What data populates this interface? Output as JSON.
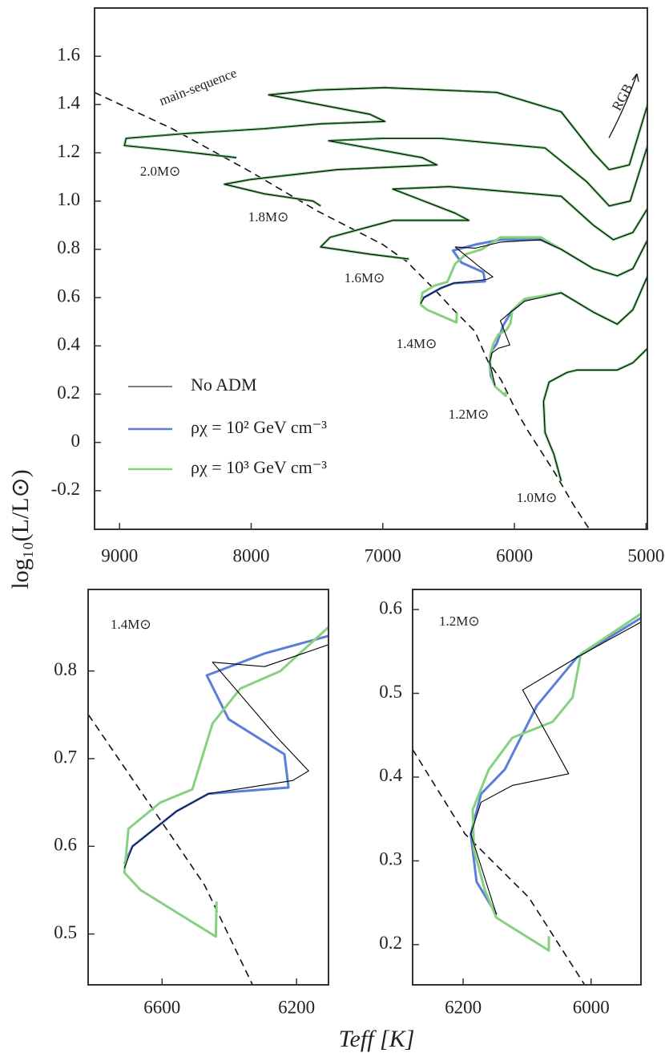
{
  "chart_data": [
    {
      "type": "line",
      "ylabel": "log₁₀(L/L⊙)",
      "xlim": [
        9190,
        4990
      ],
      "ylim": [
        -0.36,
        1.8
      ],
      "xticks": [
        9000,
        8000,
        7000,
        6000,
        5000
      ],
      "yticks": [
        -0.2,
        0,
        0.2,
        0.4,
        0.6,
        0.8,
        {
          "value": 1,
          "label": "1.0"
        },
        1.2,
        1.4,
        1.6
      ],
      "series": [
        {
          "name": "No ADM",
          "color": "#000000",
          "x": [
            8112,
            8600,
            8963,
            8950,
            8500,
            7900,
            7472,
            6985,
            7100,
            7867,
            7500,
            6985,
            6132,
            5645,
            5400,
            5280,
            5127,
            4988,
            null,
            7472,
            7530,
            7900,
            8203,
            8000,
            7350,
            6589,
            6700,
            7411,
            7000,
            6559,
            5767,
            5450,
            5280,
            5120,
            4988,
            null,
            6802,
            7100,
            7472,
            7400,
            6924,
            6346,
            6450,
            6924,
            6498,
            5645,
            5400,
            5249,
            5100,
            4988,
            null,
            6712,
            6688,
            6557,
            6462,
            6212,
            6164,
            6260,
            6450,
            6295,
            6105,
            5800,
            5645,
            5400,
            5219,
            5100,
            4988,
            null,
            6148,
            6188,
            6172,
            6123,
            6035,
            6107,
            6022,
            5922,
            5645,
            5400,
            5219,
            5100,
            4988,
            null,
            5645,
            5700,
            5767,
            5779,
            5737,
            5600,
            5524,
            5219,
            5100,
            4988
          ],
          "values": [
            1.18,
            1.21,
            1.23,
            1.26,
            1.28,
            1.3,
            1.32,
            1.33,
            1.36,
            1.44,
            1.46,
            1.47,
            1.45,
            1.37,
            1.2,
            1.13,
            1.15,
            1.4,
            null,
            0.98,
            1.0,
            1.03,
            1.07,
            1.09,
            1.13,
            1.15,
            1.18,
            1.25,
            1.26,
            1.26,
            1.22,
            1.08,
            0.98,
            1.0,
            1.23,
            null,
            0.76,
            0.78,
            0.81,
            0.85,
            0.92,
            0.92,
            0.95,
            1.05,
            1.06,
            1.02,
            0.9,
            0.84,
            0.87,
            0.97,
            null,
            0.575,
            0.6,
            0.64,
            0.66,
            0.675,
            0.686,
            0.725,
            0.81,
            0.805,
            0.83,
            0.84,
            0.8,
            0.72,
            0.69,
            0.72,
            0.84,
            null,
            0.236,
            0.332,
            0.37,
            0.39,
            0.404,
            0.504,
            0.543,
            0.585,
            0.62,
            0.54,
            0.49,
            0.55,
            0.69,
            null,
            -0.16,
            -0.05,
            0.04,
            0.17,
            0.25,
            0.29,
            0.3,
            0.3,
            0.33,
            0.39
          ]
        },
        {
          "name": "ρχ = 10² GeV cm⁻³",
          "color": "#5b7fd6",
          "x": [
            8112,
            8600,
            8963,
            8950,
            8500,
            7900,
            7472,
            6985,
            7100,
            7867,
            7500,
            6985,
            6132,
            5645,
            5400,
            5280,
            5127,
            4988,
            null,
            7472,
            7530,
            7900,
            8203,
            8000,
            7350,
            6589,
            6700,
            7411,
            7000,
            6559,
            5767,
            5450,
            5280,
            5120,
            4988,
            null,
            6802,
            7100,
            7472,
            7400,
            6924,
            6346,
            6450,
            6924,
            6498,
            5645,
            5400,
            5249,
            5100,
            4988,
            null,
            6712,
            6688,
            6557,
            6462,
            6224,
            6236,
            6402,
            6467,
            6295,
            6105,
            5800,
            5645,
            5400,
            5219,
            5100,
            4988,
            null,
            6148,
            6179,
            6188,
            6172,
            6135,
            6085,
            6022,
            5922,
            5645,
            5400,
            5219,
            5100,
            4988,
            null,
            5645,
            5700,
            5767,
            5779,
            5737,
            5600,
            5524,
            5219,
            5100,
            4988
          ],
          "values": [
            1.18,
            1.21,
            1.23,
            1.26,
            1.28,
            1.3,
            1.32,
            1.33,
            1.36,
            1.44,
            1.46,
            1.47,
            1.45,
            1.37,
            1.2,
            1.13,
            1.15,
            1.4,
            null,
            0.98,
            1.0,
            1.03,
            1.07,
            1.09,
            1.13,
            1.15,
            1.18,
            1.25,
            1.26,
            1.26,
            1.22,
            1.08,
            0.98,
            1.0,
            1.23,
            null,
            0.76,
            0.78,
            0.81,
            0.85,
            0.92,
            0.92,
            0.95,
            1.05,
            1.06,
            1.02,
            0.9,
            0.84,
            0.87,
            0.97,
            null,
            0.58,
            0.6,
            0.64,
            0.66,
            0.667,
            0.705,
            0.745,
            0.795,
            0.82,
            0.84,
            0.84,
            0.8,
            0.72,
            0.69,
            0.72,
            0.84,
            null,
            0.236,
            0.275,
            0.332,
            0.38,
            0.409,
            0.485,
            0.543,
            0.59,
            0.62,
            0.54,
            0.49,
            0.55,
            0.69,
            null,
            -0.16,
            -0.05,
            0.04,
            0.17,
            0.25,
            0.29,
            0.3,
            0.3,
            0.33,
            0.39
          ]
        },
        {
          "name": "ρχ = 10³ GeV cm⁻³",
          "color": "#86d17f",
          "x": [
            8112,
            8600,
            8963,
            8950,
            8500,
            7900,
            7472,
            6985,
            7100,
            7867,
            7500,
            6985,
            6132,
            5645,
            5400,
            5280,
            5127,
            4988,
            null,
            7472,
            7530,
            7900,
            8203,
            8000,
            7350,
            6589,
            6700,
            7411,
            7000,
            6559,
            5767,
            5450,
            5280,
            5120,
            4988,
            null,
            6802,
            7100,
            7472,
            7400,
            6924,
            6346,
            6450,
            6924,
            6498,
            5645,
            5400,
            5249,
            5100,
            4988,
            null,
            6438,
            6440,
            6664,
            6712,
            6700,
            6605,
            6510,
            6450,
            6367,
            6248,
            6105,
            5800,
            5645,
            5400,
            5219,
            5100,
            4988,
            null,
            6066,
            6066,
            6148,
            6166,
            6183,
            6185,
            6160,
            6123,
            6060,
            6029,
            6016,
            5922,
            5645,
            5400,
            5219,
            5100,
            4988,
            null,
            5645,
            5700,
            5767,
            5779,
            5737,
            5600,
            5524,
            5219,
            5100,
            4988
          ],
          "values": [
            1.18,
            1.21,
            1.23,
            1.26,
            1.28,
            1.3,
            1.32,
            1.33,
            1.36,
            1.44,
            1.46,
            1.47,
            1.45,
            1.37,
            1.2,
            1.13,
            1.15,
            1.4,
            null,
            0.98,
            1.0,
            1.03,
            1.07,
            1.09,
            1.13,
            1.15,
            1.18,
            1.25,
            1.26,
            1.26,
            1.22,
            1.08,
            0.98,
            1.0,
            1.23,
            null,
            0.76,
            0.78,
            0.81,
            0.85,
            0.92,
            0.92,
            0.95,
            1.05,
            1.06,
            1.02,
            0.9,
            0.84,
            0.87,
            0.97,
            null,
            0.537,
            0.497,
            0.55,
            0.57,
            0.62,
            0.65,
            0.665,
            0.74,
            0.78,
            0.8,
            0.85,
            0.85,
            0.8,
            0.72,
            0.69,
            0.72,
            0.84,
            null,
            0.21,
            0.193,
            0.232,
            0.265,
            0.313,
            0.361,
            0.409,
            0.447,
            0.466,
            0.495,
            0.547,
            0.595,
            0.62,
            0.54,
            0.49,
            0.55,
            0.69,
            null,
            -0.16,
            -0.05,
            0.04,
            0.17,
            0.25,
            0.29,
            0.3,
            0.3,
            0.33,
            0.39
          ]
        }
      ],
      "reference_line": {
        "x": [
          9190,
          8600,
          8000,
          7500,
          7000,
          6819,
          6600,
          6474,
          6300,
          6200,
          6100,
          6000,
          5900,
          5700,
          5550,
          5430
        ],
        "values": [
          1.45,
          1.3,
          1.12,
          0.96,
          0.82,
          0.75,
          0.63,
          0.556,
          0.46,
          0.335,
          0.258,
          0.145,
          0.05,
          -0.12,
          -0.26,
          -0.36
        ]
      },
      "annotations": [
        "main-sequence",
        "RGB",
        "2.0M⊙",
        "1.8M⊙",
        "1.6M⊙",
        "1.4M⊙",
        "1.2M⊙",
        "1.0M⊙"
      ]
    },
    {
      "type": "line",
      "xlabel": "Teff [K]",
      "xlim": [
        6820,
        6105
      ],
      "ylim": [
        0.442,
        0.893
      ],
      "xticks": [
        6600,
        6200
      ],
      "yticks": [
        0.5,
        0.6,
        0.7,
        0.8
      ],
      "series": [
        {
          "name": "No ADM",
          "color": "#000000",
          "x": [
            6712,
            6688,
            6557,
            6462,
            6212,
            6164,
            6260,
            6450,
            6295,
            6105
          ],
          "values": [
            0.575,
            0.6,
            0.64,
            0.66,
            0.675,
            0.686,
            0.725,
            0.81,
            0.805,
            0.83
          ]
        },
        {
          "name": "ρχ = 10² GeV cm⁻³",
          "color": "#5b7fd6",
          "x": [
            6712,
            6688,
            6557,
            6462,
            6224,
            6236,
            6402,
            6467,
            6295,
            6105
          ],
          "values": [
            0.58,
            0.6,
            0.64,
            0.66,
            0.667,
            0.705,
            0.745,
            0.795,
            0.82,
            0.84
          ]
        },
        {
          "name": "ρχ = 10³ GeV cm⁻³",
          "color": "#86d17f",
          "x": [
            6438,
            6440,
            6664,
            6712,
            6700,
            6605,
            6510,
            6450,
            6367,
            6248,
            6105
          ],
          "values": [
            0.537,
            0.497,
            0.55,
            0.57,
            0.62,
            0.65,
            0.665,
            0.74,
            0.78,
            0.8,
            0.85
          ]
        }
      ],
      "reference_line": {
        "x": [
          6819,
          6605,
          6474,
          6331
        ],
        "values": [
          0.75,
          0.63,
          0.556,
          0.442
        ]
      },
      "annotations": [
        "1.4M⊙"
      ]
    },
    {
      "type": "line",
      "xlim": [
        6279,
        5922
      ],
      "ylim": [
        0.152,
        0.624
      ],
      "xticks": [
        6200,
        6000
      ],
      "yticks": [
        0.2,
        0.3,
        0.4,
        0.5,
        0.6
      ],
      "series": [
        {
          "name": "No ADM",
          "color": "#000000",
          "x": [
            6148,
            6188,
            6172,
            6123,
            6035,
            6107,
            6022,
            5922
          ],
          "values": [
            0.236,
            0.332,
            0.37,
            0.39,
            0.404,
            0.504,
            0.543,
            0.585
          ]
        },
        {
          "name": "ρχ = 10² GeV cm⁻³",
          "color": "#5b7fd6",
          "x": [
            6148,
            6179,
            6188,
            6172,
            6135,
            6085,
            6022,
            5922
          ],
          "values": [
            0.236,
            0.275,
            0.332,
            0.38,
            0.409,
            0.485,
            0.543,
            0.59
          ]
        },
        {
          "name": "ρχ = 10³ GeV cm⁻³",
          "color": "#86d17f",
          "x": [
            6066,
            6066,
            6148,
            6166,
            6183,
            6185,
            6160,
            6123,
            6060,
            6029,
            6016,
            5922
          ],
          "values": [
            0.21,
            0.193,
            0.232,
            0.265,
            0.313,
            0.361,
            0.409,
            0.447,
            0.466,
            0.495,
            0.547,
            0.595
          ]
        }
      ],
      "reference_line": {
        "x": [
          6279,
          6197,
          6097,
          6010
        ],
        "values": [
          0.433,
          0.332,
          0.256,
          0.152
        ]
      },
      "annotations": [
        "1.2M⊙"
      ]
    }
  ]
}
